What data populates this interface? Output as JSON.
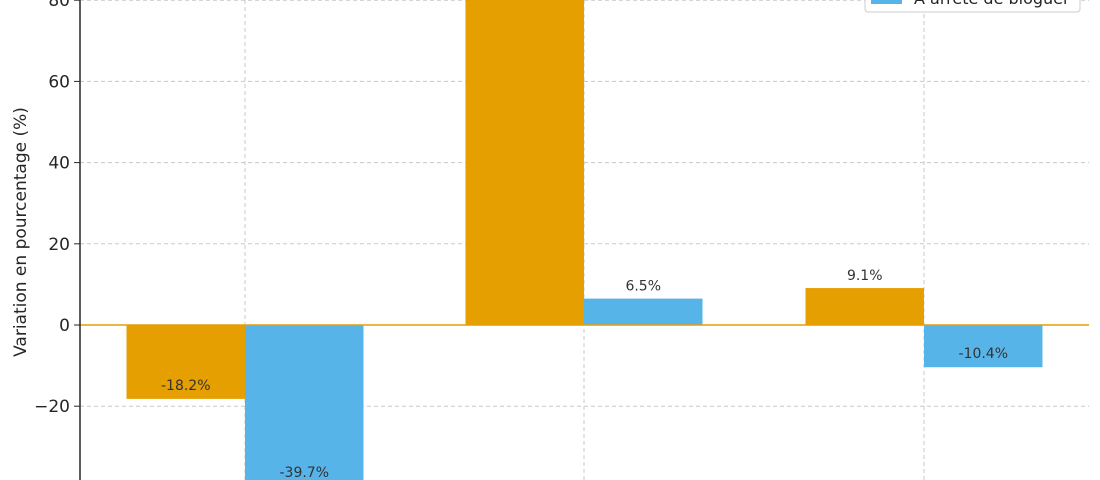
{
  "chart_data": {
    "type": "bar",
    "ylabel": "Variation en pourcentage (%)",
    "ylim": [
      -38.2,
      80
    ],
    "yticks": [
      -20,
      0,
      20,
      40,
      60,
      80
    ],
    "ytick_labels": [
      "−20",
      "0",
      "20",
      "40",
      "60",
      "80"
    ],
    "grid": true,
    "legend_position": "top-right",
    "series": [
      {
        "color": "#E69F00",
        "values": [
          -18.2,
          85,
          9.1
        ],
        "labels": [
          "-18.2%",
          null,
          "9.1%"
        ]
      },
      {
        "name": "A arrêté de bloguer",
        "color": "#56B4E9",
        "values": [
          -39.7,
          6.5,
          -10.4
        ],
        "labels": [
          "-39.7%",
          "6.5%",
          "-10.4%"
        ]
      }
    ]
  }
}
